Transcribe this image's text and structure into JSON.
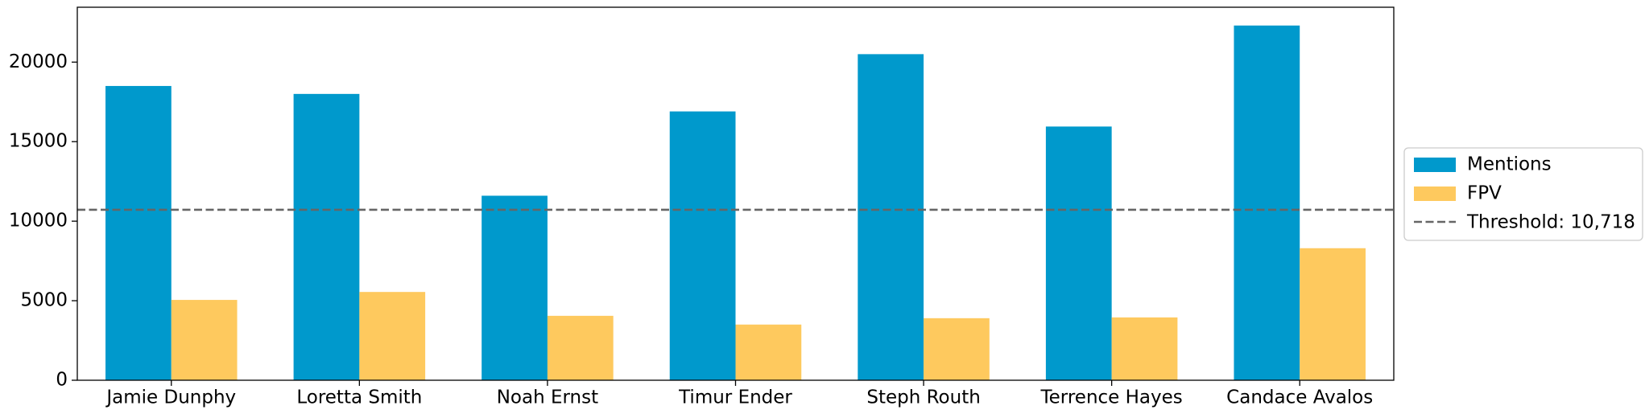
{
  "chart_data": {
    "type": "bar",
    "categories": [
      "Jamie Dunphy",
      "Loretta Smith",
      "Noah Ernst",
      "Timur Ender",
      "Steph Routh",
      "Terrence Hayes",
      "Candace Avalos"
    ],
    "series": [
      {
        "name": "Mentions",
        "color": "#0099cc",
        "values": [
          18500,
          18000,
          11600,
          16900,
          20500,
          15950,
          22300
        ]
      },
      {
        "name": "FPV",
        "color": "#fec95e",
        "values": [
          5050,
          5550,
          4050,
          3500,
          3900,
          3950,
          8300
        ]
      }
    ],
    "threshold": {
      "value": 10718,
      "label": "Threshold: 10,718",
      "color": "#666666"
    },
    "ylim": [
      0,
      23450
    ],
    "yticks": [
      0,
      5000,
      10000,
      15000,
      20000
    ],
    "legend": "right"
  }
}
